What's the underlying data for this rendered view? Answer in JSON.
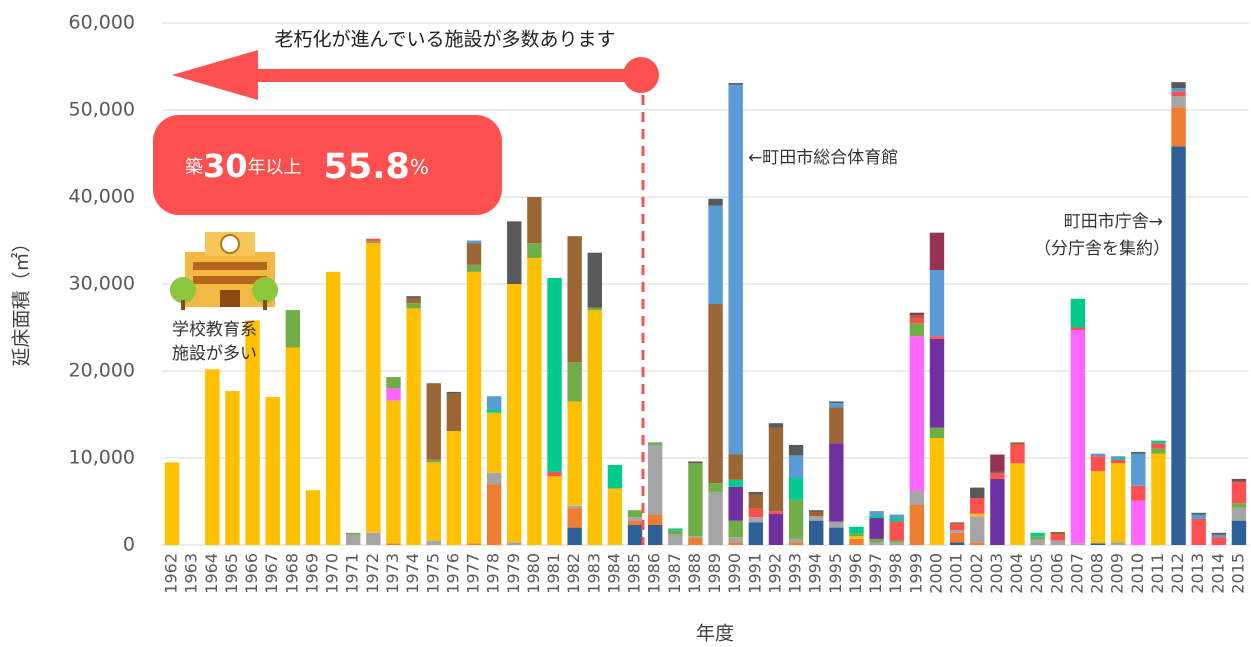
{
  "chart_data": {
    "type": "stacked-bar",
    "x_label": "年度",
    "y_label": "延床面積（㎡）",
    "annotations": {
      "arrow_text": "老朽化が進んでいる施設が多数あります",
      "callout": {
        "prefix": "築",
        "years": "30",
        "suffix": "年以上",
        "share": "55.8",
        "unit": "%"
      },
      "gym": "←町田市総合体育館",
      "city_hall_1": "町田市庁舎→",
      "city_hall_2": "（分庁舎を集約）",
      "school_1": "学校教育系",
      "school_2": "施設が多い"
    },
    "categories": [
      "1962",
      "1963",
      "1964",
      "1965",
      "1966",
      "1967",
      "1968",
      "1969",
      "1970",
      "1971",
      "1972",
      "1973",
      "1974",
      "1975",
      "1976",
      "1977",
      "1978",
      "1979",
      "1980",
      "1981",
      "1982",
      "1983",
      "1984",
      "1985",
      "1986",
      "1987",
      "1988",
      "1989",
      "1990",
      "1991",
      "1992",
      "1993",
      "1994",
      "1995",
      "1996",
      "1997",
      "1998",
      "1999",
      "2000",
      "2001",
      "2002",
      "2003",
      "2004",
      "2005",
      "2006",
      "2007",
      "2008",
      "2009",
      "2010",
      "2011",
      "2012",
      "2013",
      "2014",
      "2015"
    ],
    "ylim": [
      0,
      60000
    ],
    "yticks": [
      0,
      {
        "value": 10000,
        "label": "10,000"
      },
      {
        "value": 20000,
        "label": "20,000"
      },
      {
        "value": 30000,
        "label": "30,000"
      },
      {
        "value": 40000,
        "label": "40,000"
      },
      {
        "value": 50000,
        "label": "50,000"
      },
      {
        "value": 60000,
        "label": "60,000"
      }
    ],
    "grid": true,
    "series": [
      {
        "color": "#2e5f96",
        "values": [
          0,
          0,
          0,
          0,
          0,
          0,
          0,
          0,
          0,
          0,
          0,
          0,
          0,
          0,
          0,
          0,
          0,
          0,
          0,
          0,
          2000,
          0,
          0,
          2300,
          2300,
          0,
          0,
          0,
          0,
          2600,
          0,
          0,
          2800,
          2000,
          0,
          0,
          0,
          0,
          0,
          300,
          0,
          0,
          0,
          0,
          0,
          0,
          200,
          0,
          0,
          0,
          45800,
          0,
          0,
          2800
        ]
      },
      {
        "color": "#ed7d31",
        "values": [
          0,
          0,
          0,
          0,
          0,
          0,
          0,
          0,
          0,
          0,
          0,
          200,
          0,
          0,
          0,
          200,
          7000,
          0,
          0,
          0,
          2200,
          0,
          0,
          500,
          1200,
          0,
          800,
          0,
          300,
          0,
          0,
          300,
          0,
          0,
          700,
          0,
          0,
          4600,
          0,
          1100,
          300,
          0,
          0,
          0,
          0,
          0,
          0,
          0,
          0,
          0,
          4500,
          0,
          0,
          0
        ]
      },
      {
        "color": "#a5a5a5",
        "values": [
          0,
          0,
          0,
          0,
          0,
          0,
          0,
          0,
          0,
          1200,
          1400,
          0,
          0,
          500,
          0,
          0,
          1300,
          300,
          0,
          0,
          300,
          0,
          0,
          400,
          8000,
          1200,
          200,
          6100,
          600,
          600,
          0,
          400,
          500,
          700,
          0,
          300,
          300,
          1600,
          0,
          300,
          3000,
          0,
          0,
          600,
          500,
          200,
          0,
          300,
          0,
          0,
          1300,
          0,
          0,
          1500
        ]
      },
      {
        "color": "#ffc000",
        "values": [
          9500,
          0,
          20200,
          17700,
          25800,
          17000,
          22700,
          6300,
          31400,
          0,
          33300,
          16400,
          27200,
          9000,
          13100,
          31200,
          6900,
          29700,
          33000,
          7900,
          12000,
          27000,
          6500,
          0,
          0,
          0,
          0,
          0,
          0,
          0,
          0,
          0,
          0,
          0,
          300,
          0,
          0,
          0,
          12300,
          0,
          300,
          0,
          9400,
          0,
          0,
          0,
          8300,
          9100,
          0,
          10500,
          0,
          0,
          0,
          0
        ]
      },
      {
        "color": "#ff66ff",
        "values": [
          0,
          0,
          0,
          0,
          0,
          0,
          0,
          0,
          0,
          0,
          0,
          1400,
          0,
          0,
          0,
          0,
          0,
          0,
          0,
          0,
          0,
          0,
          0,
          0,
          0,
          0,
          0,
          0,
          0,
          0,
          0,
          0,
          0,
          0,
          0,
          0,
          0,
          17800,
          0,
          0,
          0,
          0,
          0,
          0,
          0,
          24500,
          0,
          0,
          5100,
          0,
          0,
          0,
          0,
          0
        ]
      },
      {
        "color": "#70ad47",
        "values": [
          0,
          0,
          0,
          0,
          0,
          0,
          4300,
          0,
          0,
          200,
          200,
          1300,
          600,
          300,
          0,
          800,
          0,
          0,
          1700,
          0,
          4500,
          300,
          0,
          800,
          300,
          500,
          8400,
          1000,
          1900,
          0,
          0,
          4500,
          0,
          0,
          300,
          400,
          200,
          1500,
          1200,
          0,
          0,
          0,
          0,
          400,
          0,
          0,
          0,
          0,
          0,
          600,
          0,
          0,
          0,
          500
        ]
      },
      {
        "color": "#7030a0",
        "values": [
          0,
          0,
          0,
          0,
          0,
          0,
          0,
          0,
          0,
          0,
          0,
          0,
          0,
          0,
          0,
          0,
          0,
          0,
          0,
          0,
          0,
          0,
          0,
          0,
          0,
          0,
          0,
          0,
          3900,
          0,
          3600,
          0,
          0,
          9000,
          0,
          2400,
          0,
          0,
          10200,
          0,
          0,
          7600,
          0,
          0,
          0,
          0,
          0,
          0,
          0,
          0,
          0,
          0,
          0,
          0
        ]
      },
      {
        "color": "#ff5050",
        "values": [
          0,
          0,
          0,
          0,
          0,
          0,
          0,
          0,
          0,
          0,
          300,
          0,
          0,
          0,
          0,
          0,
          0,
          0,
          0,
          500,
          0,
          0,
          0,
          0,
          0,
          0,
          0,
          0,
          0,
          1000,
          300,
          0,
          0,
          0,
          0,
          0,
          2200,
          600,
          300,
          700,
          1800,
          700,
          2100,
          0,
          700,
          300,
          1700,
          400,
          1700,
          600,
          500,
          3000,
          900,
          2500
        ]
      },
      {
        "color": "#00c98d",
        "values": [
          0,
          0,
          0,
          0,
          0,
          0,
          0,
          0,
          0,
          0,
          0,
          0,
          0,
          0,
          0,
          0,
          400,
          0,
          0,
          22300,
          0,
          0,
          2700,
          0,
          0,
          200,
          0,
          0,
          800,
          0,
          0,
          2500,
          0,
          0,
          800,
          300,
          400,
          0,
          0,
          0,
          0,
          0,
          0,
          400,
          0,
          3300,
          0,
          200,
          0,
          300,
          0,
          0,
          0,
          0
        ]
      },
      {
        "color": "#9c6634",
        "values": [
          0,
          0,
          0,
          0,
          0,
          0,
          0,
          0,
          0,
          0,
          0,
          0,
          600,
          8800,
          4300,
          2500,
          0,
          0,
          5300,
          0,
          14500,
          0,
          0,
          0,
          0,
          0,
          0,
          20600,
          2900,
          1600,
          9600,
          0,
          500,
          4100,
          0,
          0,
          0,
          300,
          0,
          200,
          0,
          0,
          300,
          0,
          300,
          0,
          0,
          0,
          0,
          0,
          0,
          0,
          0,
          0
        ]
      },
      {
        "color": "#5b9bd5",
        "values": [
          0,
          0,
          0,
          0,
          0,
          0,
          0,
          0,
          0,
          0,
          0,
          0,
          0,
          0,
          0,
          300,
          1500,
          0,
          0,
          0,
          0,
          0,
          0,
          0,
          0,
          0,
          0,
          11300,
          42500,
          0,
          0,
          2600,
          0,
          500,
          0,
          500,
          400,
          0,
          7600,
          0,
          0,
          0,
          0,
          0,
          0,
          0,
          300,
          200,
          3700,
          0,
          400,
          500,
          300,
          0
        ]
      },
      {
        "color": "#595959",
        "values": [
          0,
          0,
          0,
          0,
          0,
          0,
          0,
          0,
          0,
          0,
          0,
          0,
          200,
          0,
          200,
          0,
          0,
          7200,
          0,
          0,
          0,
          6300,
          0,
          0,
          0,
          0,
          200,
          800,
          200,
          300,
          500,
          1200,
          200,
          200,
          0,
          0,
          0,
          0,
          0,
          0,
          1200,
          200,
          0,
          0,
          0,
          0,
          0,
          0,
          200,
          0,
          700,
          200,
          200,
          300
        ]
      },
      {
        "color": "#993355",
        "values": [
          0,
          0,
          0,
          0,
          0,
          0,
          0,
          0,
          0,
          0,
          0,
          0,
          0,
          0,
          0,
          0,
          0,
          0,
          0,
          0,
          0,
          0,
          0,
          0,
          0,
          0,
          0,
          0,
          0,
          0,
          0,
          0,
          0,
          0,
          0,
          0,
          0,
          300,
          4300,
          0,
          0,
          1900,
          0,
          0,
          0,
          0,
          0,
          0,
          0,
          0,
          0,
          0,
          0,
          0
        ]
      }
    ]
  }
}
